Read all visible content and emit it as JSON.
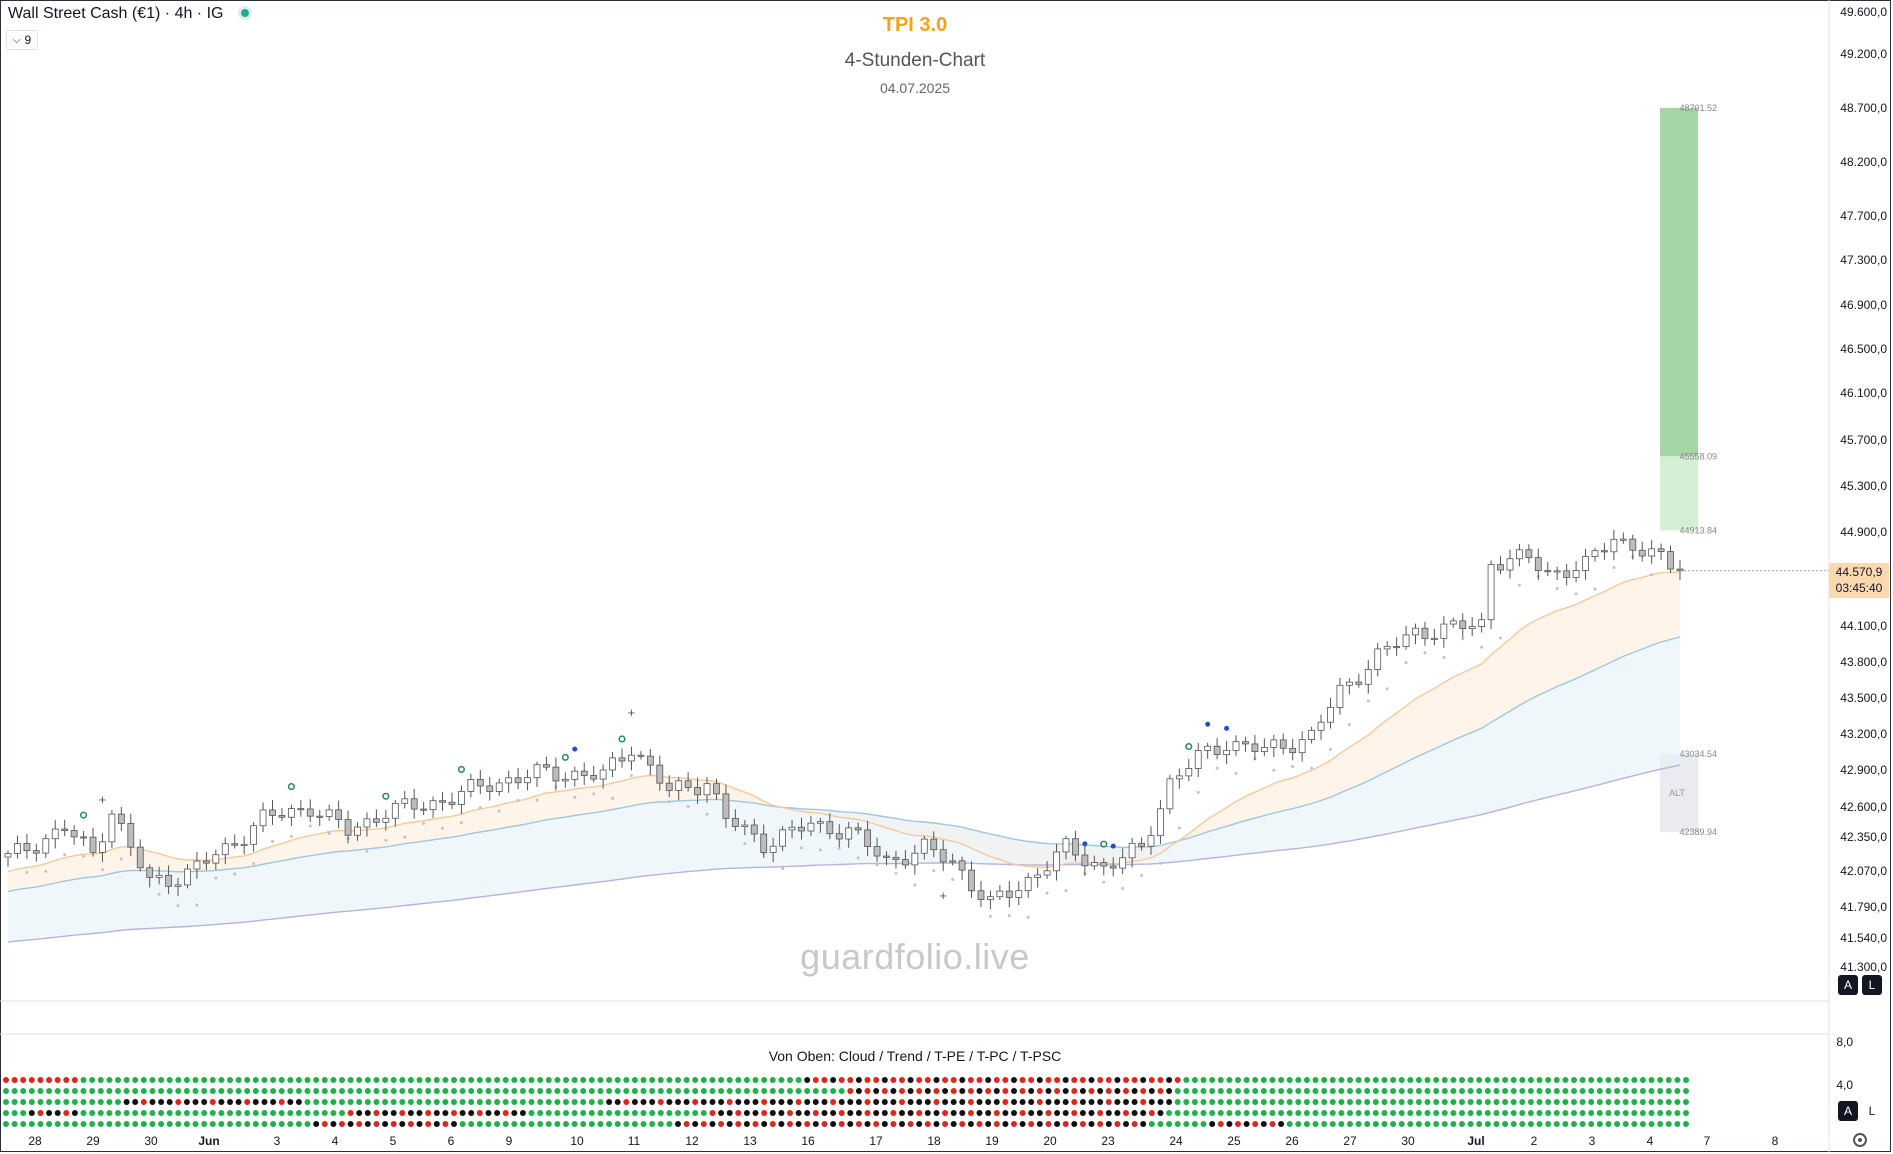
{
  "header": {
    "symbol": "Wall Street Cash (€1) · 4h · IG",
    "collapse_count": "9",
    "indicator_title": "TPI 3.0",
    "subtitle": "4-Stunden-Chart",
    "date": "04.07.2025",
    "watermark": "guardfolio.live"
  },
  "price_badge": {
    "price": "44.570,9",
    "countdown": "03:45:40"
  },
  "scale_buttons": {
    "auto": "A",
    "log": "L"
  },
  "indicator_pane": {
    "legend": "Von Oben: Cloud / Trend / T-PE / T-PC / T-PSC",
    "y_ticks": [
      "8,0",
      "4,0"
    ],
    "row_colors": {
      "green": "#21b14b",
      "red": "#e0251b",
      "black": "#111111"
    }
  },
  "colors": {
    "bull_candle": "#ffffff",
    "bear_candle": "#bdbdbd",
    "target_zone": "#a5d6a7",
    "target_zone_light": "#d5eed6",
    "alt_zone": "#e9ebf0",
    "ema_fast": "#f7c99a",
    "ema_slow": "#9fc7de",
    "ema_long": "#b9b2e0",
    "trail_dots": "#c9bfbf",
    "signal_green": "#1e8a5a",
    "signal_blue": "#1f4fc8"
  },
  "chart_data": {
    "type": "candlestick",
    "title": "4-Stunden-Chart",
    "ylim": [
      41200,
      49600
    ],
    "y_ticks": [
      49600,
      49200,
      48700,
      48200,
      47700,
      47300,
      46900,
      46500,
      46100,
      45700,
      45300,
      44900,
      44100,
      43800,
      43500,
      43200,
      42900,
      42600,
      42350,
      42070,
      41790,
      41540,
      41300
    ],
    "y_tick_labels": [
      "49.600,0",
      "49.200,0",
      "48.700,0",
      "48.200,0",
      "47.700,0",
      "47.300,0",
      "46.900,0",
      "46.500,0",
      "46.100,0",
      "45.700,0",
      "45.300,0",
      "44.900,0",
      "44.100,0",
      "43.800,0",
      "43.500,0",
      "43.200,0",
      "42.900,0",
      "42.600,0",
      "42.350,0",
      "42.070,0",
      "41.790,0",
      "41.540,0",
      "41.300,0"
    ],
    "x_tick_labels": [
      "28",
      "29",
      "30",
      "Jun",
      "3",
      "4",
      "5",
      "6",
      "9",
      "10",
      "11",
      "12",
      "13",
      "16",
      "17",
      "18",
      "19",
      "20",
      "23",
      "24",
      "25",
      "26",
      "27",
      "30",
      "Jul",
      "2",
      "3",
      "4",
      "7",
      "8"
    ],
    "target_labels": [
      "48701.52",
      "45558.09",
      "44913.84"
    ],
    "alt_labels": [
      "43034.54",
      "ALT",
      "42389.94"
    ],
    "target_levels": [
      48701.52,
      45558.09,
      44913.84
    ],
    "alt_levels": [
      43034.54,
      42389.94
    ],
    "last_price": 44570.9,
    "anchors": [
      [
        0,
        42180
      ],
      [
        6,
        42420
      ],
      [
        9,
        42210
      ],
      [
        11,
        42580
      ],
      [
        13,
        42250
      ],
      [
        15,
        41980
      ],
      [
        19,
        42050
      ],
      [
        23,
        42250
      ],
      [
        27,
        42500
      ],
      [
        32,
        42600
      ],
      [
        36,
        42400
      ],
      [
        40,
        42560
      ],
      [
        46,
        42650
      ],
      [
        51,
        42790
      ],
      [
        57,
        42880
      ],
      [
        63,
        42850
      ],
      [
        66,
        43100
      ],
      [
        70,
        42720
      ],
      [
        74,
        42810
      ],
      [
        76,
        42500
      ],
      [
        80,
        42300
      ],
      [
        85,
        42450
      ],
      [
        89,
        42400
      ],
      [
        93,
        42150
      ],
      [
        97,
        42250
      ],
      [
        100,
        42150
      ],
      [
        104,
        41800
      ],
      [
        108,
        42000
      ],
      [
        112,
        42250
      ],
      [
        116,
        42100
      ],
      [
        120,
        42250
      ],
      [
        123,
        42800
      ],
      [
        126,
        43000
      ],
      [
        129,
        43130
      ],
      [
        133,
        43060
      ],
      [
        138,
        43180
      ],
      [
        141,
        43550
      ],
      [
        145,
        43850
      ],
      [
        149,
        44050
      ],
      [
        153,
        44080
      ],
      [
        156,
        44120
      ],
      [
        157,
        44650
      ],
      [
        161,
        44670
      ],
      [
        163,
        44550
      ],
      [
        167,
        44610
      ],
      [
        170,
        44860
      ],
      [
        174,
        44700
      ],
      [
        177,
        44570
      ]
    ]
  }
}
